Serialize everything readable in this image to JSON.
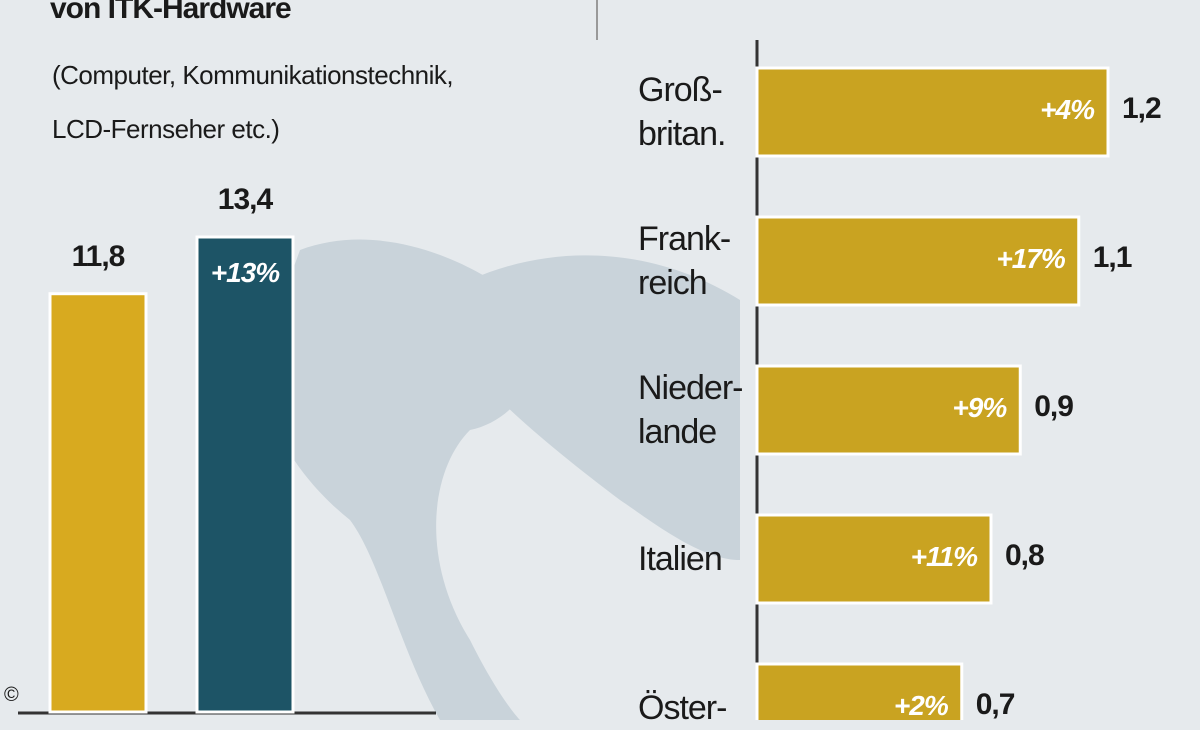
{
  "chart_data": [
    {
      "type": "bar",
      "orientation": "vertical",
      "title": "von ITK-Hardware",
      "subtitle": [
        "(Computer, Kommunikationstechnik,",
        "LCD-Fernseher etc.)"
      ],
      "categories": [
        null,
        null
      ],
      "values": [
        11.8,
        13.4
      ],
      "value_labels": [
        "11,8",
        "13,4"
      ],
      "change_labels": [
        null,
        "+13%"
      ],
      "colors": [
        "#d8aa1f",
        "#1d5466"
      ]
    },
    {
      "type": "bar",
      "orientation": "horizontal",
      "categories": [
        "Groß-\nbritan.",
        "Frank-\nreich",
        "Nieder-\nlande",
        "Italien",
        "Öster-"
      ],
      "values": [
        1.2,
        1.1,
        0.9,
        0.8,
        0.7
      ],
      "value_labels": [
        "1,2",
        "1,1",
        "0,9",
        "0,8",
        "0,7"
      ],
      "change_labels": [
        "+4%",
        "+17%",
        "+9%",
        "+11%",
        "+2%"
      ],
      "color": "#c9a321"
    }
  ],
  "copyright": "©"
}
